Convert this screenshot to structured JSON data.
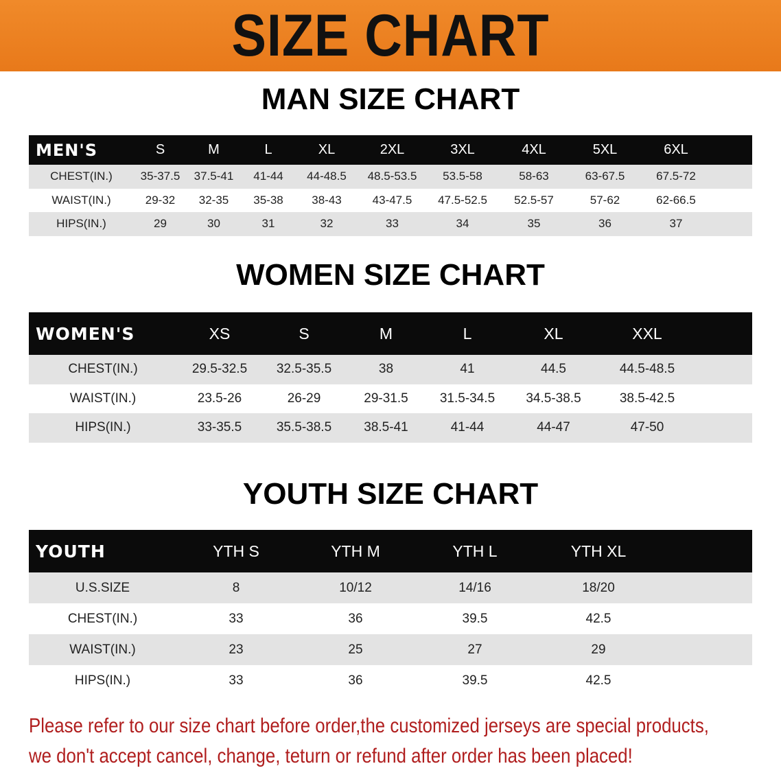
{
  "banner_title": "SIZE CHART",
  "men": {
    "title": "MAN SIZE CHART",
    "header": [
      "MEN'S",
      "S",
      "M",
      "L",
      "XL",
      "2XL",
      "3XL",
      "4XL",
      "5XL",
      "6XL"
    ],
    "rows": [
      [
        "CHEST(IN.)",
        "35-37.5",
        "37.5-41",
        "41-44",
        "44-48.5",
        "48.5-53.5",
        "53.5-58",
        "58-63",
        "63-67.5",
        "67.5-72"
      ],
      [
        "WAIST(IN.)",
        "29-32",
        "32-35",
        "35-38",
        "38-43",
        "43-47.5",
        "47.5-52.5",
        "52.5-57",
        "57-62",
        "62-66.5"
      ],
      [
        "HIPS(IN.)",
        "29",
        "30",
        "31",
        "32",
        "33",
        "34",
        "35",
        "36",
        "37"
      ]
    ]
  },
  "women": {
    "title": "WOMEN SIZE CHART",
    "header": [
      "WOMEN'S",
      "XS",
      "S",
      "M",
      "L",
      "XL",
      "XXL"
    ],
    "rows": [
      [
        "CHEST(IN.)",
        "29.5-32.5",
        "32.5-35.5",
        "38",
        "41",
        "44.5",
        "44.5-48.5"
      ],
      [
        "WAIST(IN.)",
        "23.5-26",
        "26-29",
        "29-31.5",
        "31.5-34.5",
        "34.5-38.5",
        "38.5-42.5"
      ],
      [
        "HIPS(IN.)",
        "33-35.5",
        "35.5-38.5",
        "38.5-41",
        "41-44",
        "44-47",
        "47-50"
      ]
    ]
  },
  "youth": {
    "title": "YOUTH SIZE CHART",
    "header": [
      "YOUTH",
      "YTH S",
      "YTH M",
      "YTH L",
      "YTH XL"
    ],
    "rows": [
      [
        "U.S.SIZE",
        "8",
        "10/12",
        "14/16",
        "18/20"
      ],
      [
        "CHEST(IN.)",
        "33",
        "36",
        "39.5",
        "42.5"
      ],
      [
        "WAIST(IN.)",
        "23",
        "25",
        "27",
        "29"
      ],
      [
        "HIPS(IN.)",
        "33",
        "36",
        "39.5",
        "42.5"
      ]
    ]
  },
  "note": {
    "line1": "Please refer to our size chart before order,the customized jerseys are special products,",
    "line2": "we don't accept cancel, change, teturn or refund after order has been placed!"
  },
  "colors": {
    "banner": "#ec8224",
    "header_row": "#0b0b0b",
    "stripe": "#e3e3e3",
    "note": "#b01e1e"
  }
}
